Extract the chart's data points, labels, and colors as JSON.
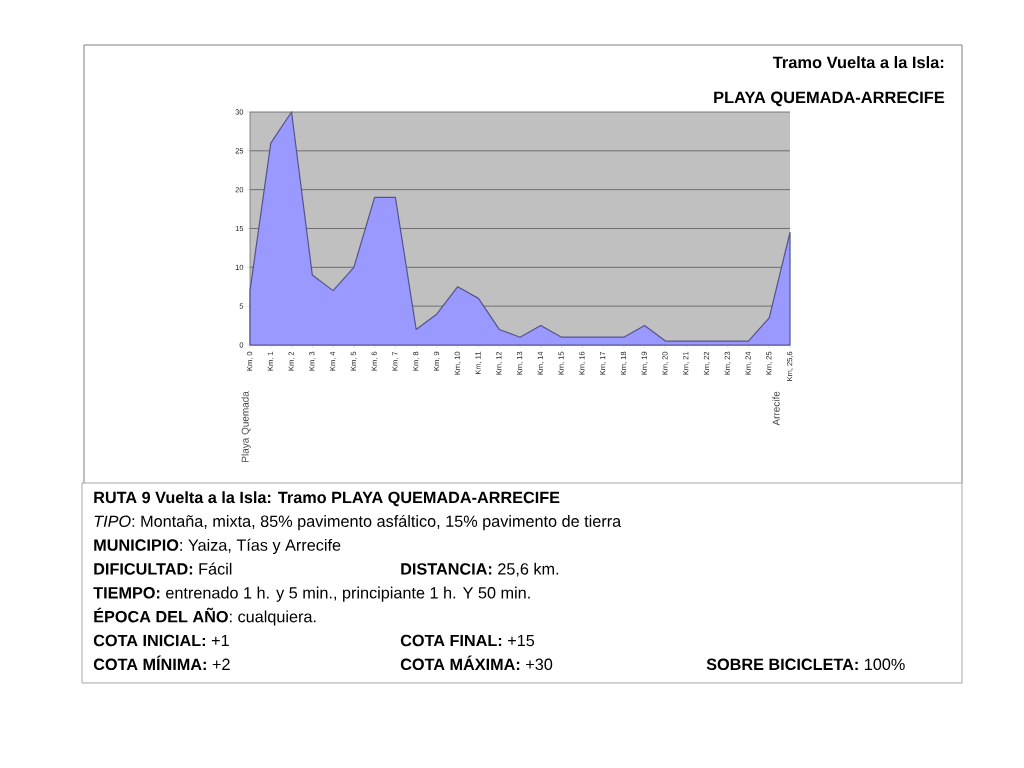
{
  "chart_data": {
    "type": "area",
    "title": "Tramo Vuelta a la Isla:",
    "subtitle": "PLAYA QUEMADA-ARRECIFE",
    "categories": [
      "Km, 0",
      "Km, 1",
      "Km, 2",
      "Km, 3",
      "Km, 4",
      "Km, 5",
      "Km, 6",
      "Km, 7",
      "Km, 8",
      "Km, 9",
      "Km, 10",
      "Km, 11",
      "Km, 12",
      "Km, 13",
      "Km, 14",
      "Km, 15",
      "Km, 16",
      "Km, 17",
      "Km, 18",
      "Km, 19",
      "Km, 20",
      "Km, 21",
      "Km, 22",
      "Km, 23",
      "Km, 24",
      "Km, 25",
      "Km, 25,6"
    ],
    "values": [
      7,
      26,
      30,
      9,
      7,
      10,
      19,
      19,
      2,
      4,
      7.5,
      6,
      2,
      1,
      2.5,
      1,
      1,
      1,
      1,
      2.5,
      0.5,
      0.5,
      0.5,
      0.5,
      0.5,
      3.5,
      14.5
    ],
    "color": "#9999ff",
    "ylim": [
      0,
      30
    ],
    "yticks": [
      0,
      5,
      10,
      15,
      20,
      25,
      30
    ],
    "grid": "y",
    "annotations": [
      "Playa Quemada",
      "Arrecife",
      "RUTA 9 Vuelta a la Isla: Tramo PLAYA QUEMADA-ARRECIFE",
      "*TIPO*: Montaña, mixta, 85% pavimento asfáltico, 15% pavimento de tierra",
      "**MUNICIPIO**: Yaiza, Tías y Arrecife",
      "**DIFICULTAD:** Fácil",
      "**DISTANCIA:** 25,6 km.",
      "**TIEMPO:** entrenado 1 h. y 5 min., principiante 1 h.  Y 50 min.",
      "**ÉPOCA DEL AÑO**: cualquiera.",
      "**COTA INICIAL:** +1",
      "**COTA FINAL:** +15",
      "**COTA MÍNIMA:** +2",
      "**COTA MÁXIMA:** +30",
      "**SOBRE BICICLETA:** 100%"
    ]
  }
}
